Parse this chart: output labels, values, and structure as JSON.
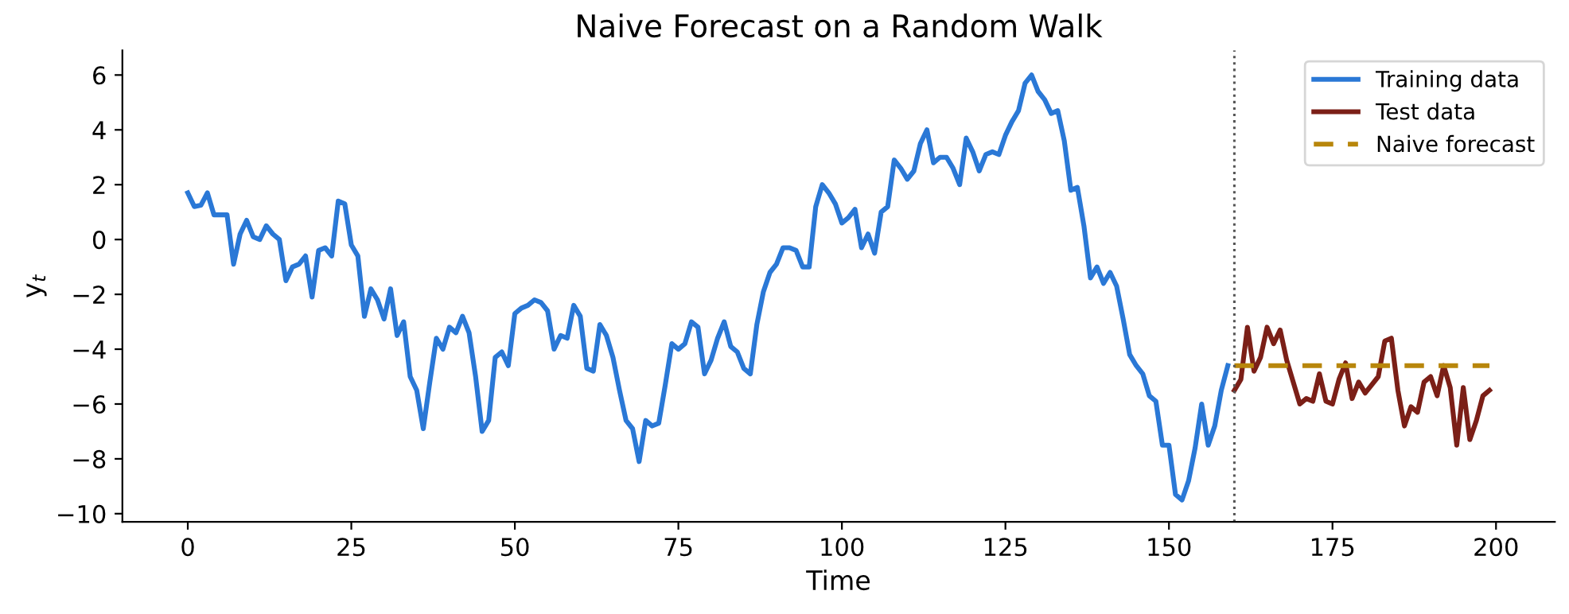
{
  "chart_data": {
    "type": "line",
    "title": "Naive Forecast on a Random Walk",
    "xlabel": "Time",
    "ylabel": "y$_{t}$",
    "xlim": [
      -10,
      209
    ],
    "ylim": [
      -10.3,
      6.9
    ],
    "xticks": [
      0,
      25,
      50,
      75,
      100,
      125,
      150,
      175,
      200
    ],
    "yticks": [
      {
        "value": -10,
        "label": "−10"
      },
      {
        "value": -8,
        "label": "−8"
      },
      {
        "value": -6,
        "label": "−6"
      },
      {
        "value": -4,
        "label": "−4"
      },
      {
        "value": -2,
        "label": "−2"
      },
      0,
      2,
      4,
      6
    ],
    "grid": false,
    "legend": "top right",
    "ref_lines": [
      {
        "axis": "x",
        "value": 160,
        "color": "#555555",
        "line_style": "dotted"
      }
    ],
    "series": [
      {
        "name": "Training data",
        "color": "#2a78d6",
        "line_style": "solid",
        "x": [
          0,
          1,
          2,
          3,
          4,
          5,
          6,
          7,
          8,
          9,
          10,
          11,
          12,
          13,
          14,
          15,
          16,
          17,
          18,
          19,
          20,
          21,
          22,
          23,
          24,
          25,
          26,
          27,
          28,
          29,
          30,
          31,
          32,
          33,
          34,
          35,
          36,
          37,
          38,
          39,
          40,
          41,
          42,
          43,
          44,
          45,
          46,
          47,
          48,
          49,
          50,
          51,
          52,
          53,
          54,
          55,
          56,
          57,
          58,
          59,
          60,
          61,
          62,
          63,
          64,
          65,
          66,
          67,
          68,
          69,
          70,
          71,
          72,
          73,
          74,
          75,
          76,
          77,
          78,
          79,
          80,
          81,
          82,
          83,
          84,
          85,
          86,
          87,
          88,
          89,
          90,
          91,
          92,
          93,
          94,
          95,
          96,
          97,
          98,
          99,
          100,
          101,
          102,
          103,
          104,
          105,
          106,
          107,
          108,
          109,
          110,
          111,
          112,
          113,
          114,
          115,
          116,
          117,
          118,
          119,
          120,
          121,
          122,
          123,
          124,
          125,
          126,
          127,
          128,
          129,
          130,
          131,
          132,
          133,
          134,
          135,
          136,
          137,
          138,
          139,
          140,
          141,
          142,
          143,
          144,
          145,
          146,
          147,
          148,
          149,
          150,
          151,
          152,
          153,
          154,
          155,
          156,
          157,
          158,
          159
        ],
        "values": [
          1.7,
          1.2,
          1.25,
          1.7,
          0.9,
          0.9,
          0.9,
          -0.9,
          0.2,
          0.7,
          0.1,
          0.0,
          0.5,
          0.2,
          0.0,
          -1.5,
          -1.0,
          -0.9,
          -0.6,
          -2.1,
          -0.4,
          -0.3,
          -0.6,
          1.4,
          1.3,
          -0.2,
          -0.6,
          -2.8,
          -1.8,
          -2.2,
          -2.9,
          -1.8,
          -3.5,
          -3.0,
          -5.0,
          -5.5,
          -6.9,
          -5.2,
          -3.6,
          -4.0,
          -3.2,
          -3.4,
          -2.8,
          -3.4,
          -5.0,
          -7.0,
          -6.6,
          -4.3,
          -4.1,
          -4.6,
          -2.7,
          -2.5,
          -2.4,
          -2.2,
          -2.3,
          -2.6,
          -4.0,
          -3.5,
          -3.6,
          -2.4,
          -2.8,
          -4.7,
          -4.8,
          -3.1,
          -3.5,
          -4.3,
          -5.5,
          -6.6,
          -6.9,
          -8.1,
          -6.6,
          -6.8,
          -6.7,
          -5.3,
          -3.8,
          -4.0,
          -3.8,
          -3.0,
          -3.2,
          -4.9,
          -4.4,
          -3.6,
          -3.0,
          -3.9,
          -4.1,
          -4.7,
          -4.9,
          -3.1,
          -1.9,
          -1.2,
          -0.9,
          -0.3,
          -0.3,
          -0.4,
          -1.0,
          -1.0,
          1.2,
          2.0,
          1.7,
          1.3,
          0.6,
          0.8,
          1.1,
          -0.3,
          0.2,
          -0.5,
          1.0,
          1.2,
          2.9,
          2.6,
          2.2,
          2.5,
          3.5,
          4.0,
          2.8,
          3.0,
          3.0,
          2.6,
          2.0,
          3.7,
          3.2,
          2.5,
          3.1,
          3.2,
          3.1,
          3.8,
          4.3,
          4.7,
          5.7,
          6.0,
          5.4,
          5.1,
          4.6,
          4.7,
          3.6,
          1.8,
          1.9,
          0.5,
          -1.4,
          -1.0,
          -1.6,
          -1.2,
          -1.7,
          -2.9,
          -4.2,
          -4.6,
          -4.9,
          -5.7,
          -5.9,
          -7.5,
          -7.5,
          -9.3,
          -9.5,
          -8.8,
          -7.6,
          -6.0,
          -7.5,
          -6.8,
          -5.5,
          -4.6
        ]
      },
      {
        "name": "Test data",
        "color": "#7b1f17",
        "line_style": "solid",
        "x": [
          160,
          161,
          162,
          163,
          164,
          165,
          166,
          167,
          168,
          169,
          170,
          171,
          172,
          173,
          174,
          175,
          176,
          177,
          178,
          179,
          180,
          181,
          182,
          183,
          184,
          185,
          186,
          187,
          188,
          189,
          190,
          191,
          192,
          193,
          194,
          195,
          196,
          197,
          198,
          199
        ],
        "values": [
          -5.5,
          -5.1,
          -3.2,
          -4.8,
          -4.3,
          -3.2,
          -3.8,
          -3.3,
          -4.4,
          -5.2,
          -6.0,
          -5.8,
          -5.9,
          -4.9,
          -5.9,
          -6.0,
          -5.1,
          -4.5,
          -5.8,
          -5.2,
          -5.6,
          -5.3,
          -5.0,
          -3.7,
          -3.6,
          -5.5,
          -6.8,
          -6.1,
          -6.3,
          -5.2,
          -5.0,
          -5.7,
          -4.6,
          -5.4,
          -7.5,
          -5.4,
          -7.3,
          -6.6,
          -5.7,
          -5.5
        ]
      },
      {
        "name": "Naive forecast",
        "color": "#b8860b",
        "line_style": "dashed",
        "x": [
          160,
          199
        ],
        "values": [
          -4.6,
          -4.6
        ]
      }
    ]
  }
}
